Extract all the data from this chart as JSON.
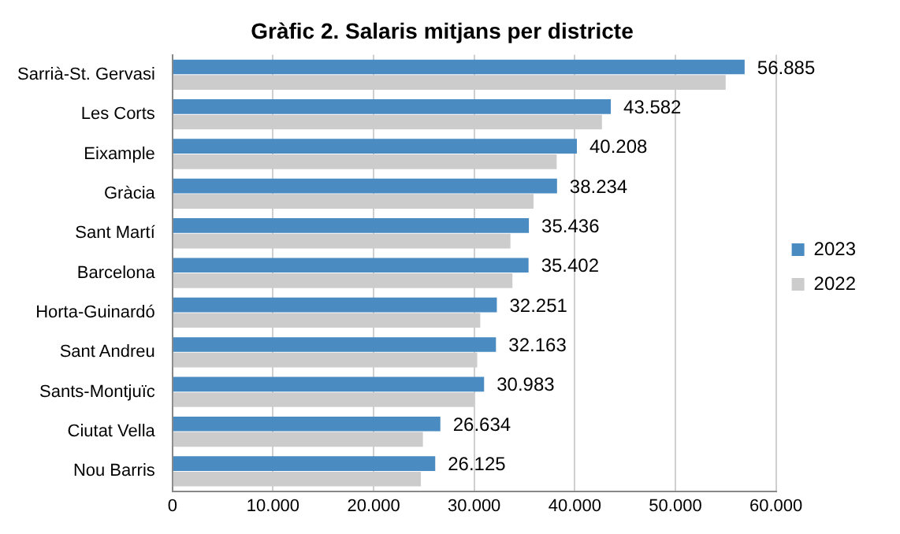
{
  "chart_data": {
    "type": "bar",
    "orientation": "horizontal",
    "title": "Gràfic 2. Salaris mitjans per districte",
    "categories": [
      "Sarrià-St. Gervasi",
      "Les Corts",
      "Eixample",
      "Gràcia",
      "Sant Martí",
      "Barcelona",
      "Horta-Guinardó",
      "Sant Andreu",
      "Sants-Montjuïc",
      "Ciutat Vella",
      "Nou Barris"
    ],
    "series": [
      {
        "name": "2023",
        "color": "#4a8bc2",
        "values": [
          56885,
          43582,
          40208,
          38234,
          35436,
          35402,
          32251,
          32163,
          30983,
          26634,
          26125
        ],
        "value_labels": [
          "56.885",
          "43.582",
          "40.208",
          "38.234",
          "35.436",
          "35.402",
          "32.251",
          "32.163",
          "30.983",
          "26.634",
          "26.125"
        ]
      },
      {
        "name": "2022",
        "color": "#cccccc",
        "values": [
          55000,
          42700,
          38200,
          35900,
          33600,
          33800,
          30600,
          30300,
          30000,
          24900,
          24700
        ]
      }
    ],
    "xlim": [
      0,
      60000
    ],
    "xticks": [
      {
        "value": 0,
        "label": "0"
      },
      {
        "value": 10000,
        "label": "10.000"
      },
      {
        "value": 20000,
        "label": "20.000"
      },
      {
        "value": 30000,
        "label": "30.000"
      },
      {
        "value": 40000,
        "label": "40.000"
      },
      {
        "value": 50000,
        "label": "50.000"
      },
      {
        "value": 60000,
        "label": "60.000"
      }
    ],
    "grid": "x",
    "legend": "right"
  }
}
